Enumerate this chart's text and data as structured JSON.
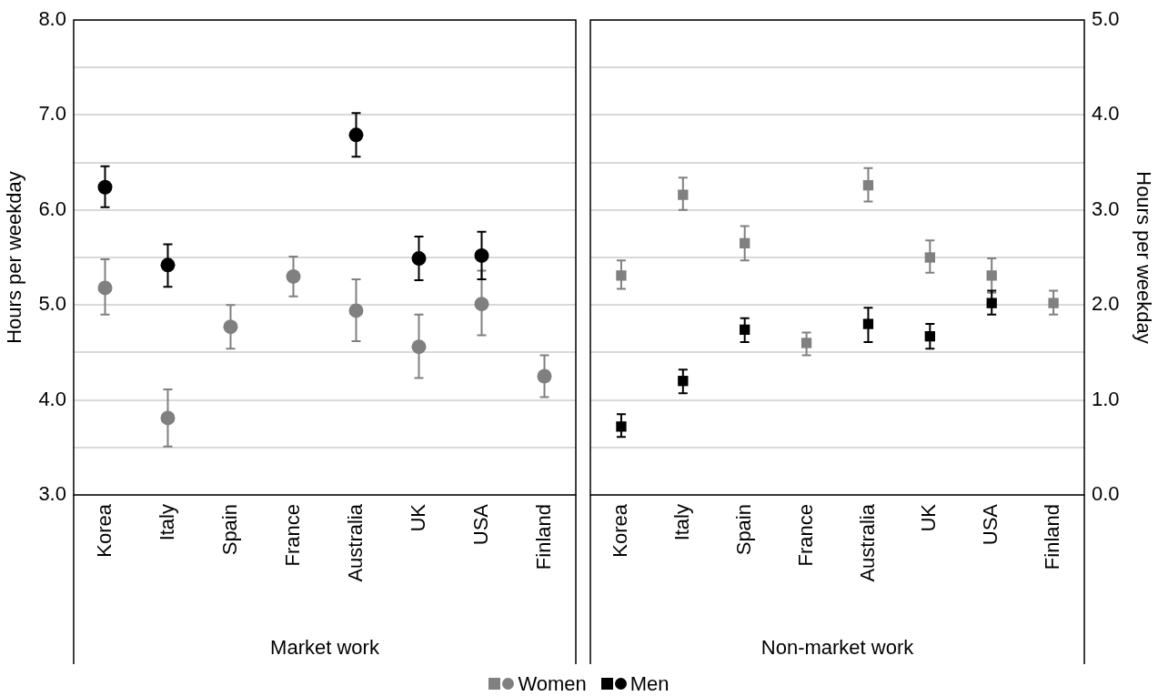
{
  "chart_data": [
    {
      "type": "scatter",
      "xlabel": "Market work",
      "ylabel": "Hours per weekday",
      "categories": [
        "Korea",
        "Italy",
        "Spain",
        "France",
        "Australia",
        "UK",
        "USA",
        "Finland"
      ],
      "series": [
        {
          "name": "Women",
          "color": "#808080",
          "values": [
            5.18,
            3.81,
            4.77,
            5.3,
            4.94,
            4.56,
            5.01,
            4.25
          ],
          "errors": [
            [
              4.9,
              5.48
            ],
            [
              3.51,
              4.11
            ],
            [
              4.54,
              5.0
            ],
            [
              5.09,
              5.51
            ],
            [
              4.62,
              5.27
            ],
            [
              4.23,
              4.9
            ],
            [
              4.68,
              5.36
            ],
            [
              4.03,
              4.47
            ]
          ]
        },
        {
          "name": "Men",
          "color": "#000000",
          "values": [
            6.24,
            5.42,
            null,
            null,
            6.79,
            5.49,
            5.52,
            null
          ],
          "errors": [
            [
              6.03,
              6.46
            ],
            [
              5.19,
              5.64
            ],
            null,
            null,
            [
              6.56,
              7.02
            ],
            [
              5.26,
              5.72
            ],
            [
              5.27,
              5.77
            ],
            null
          ]
        }
      ],
      "ylim": [
        3,
        8
      ],
      "yticks": [
        {
          "value": 3,
          "label": "3.0"
        },
        {
          "value": 3.5,
          "label": null
        },
        {
          "value": 4,
          "label": "4.0"
        },
        {
          "value": 4.5,
          "label": null
        },
        {
          "value": 5,
          "label": "5.0"
        },
        {
          "value": 5.5,
          "label": null
        },
        {
          "value": 6,
          "label": "6.0"
        },
        {
          "value": 6.5,
          "label": null
        },
        {
          "value": 7,
          "label": "7.0"
        },
        {
          "value": 7.5,
          "label": null
        },
        {
          "value": 8,
          "label": "8.0"
        }
      ],
      "grid": "y",
      "marker": "circle",
      "legend": "bottom"
    },
    {
      "type": "scatter",
      "xlabel": "Non-market work",
      "y2label": "Hours per weekday",
      "categories": [
        "Korea",
        "Italy",
        "Spain",
        "France",
        "Australia",
        "UK",
        "USA",
        "Finland"
      ],
      "series": [
        {
          "color": "#808080",
          "axis": "y2",
          "values": [
            2.31,
            3.16,
            2.65,
            1.6,
            3.26,
            2.5,
            2.31,
            2.02
          ],
          "errors": [
            [
              2.17,
              2.47
            ],
            [
              3.0,
              3.34
            ],
            [
              2.47,
              2.83
            ],
            [
              1.47,
              1.71
            ],
            [
              3.09,
              3.44
            ],
            [
              2.34,
              2.68
            ],
            [
              2.13,
              2.49
            ],
            [
              1.9,
              2.15
            ]
          ]
        },
        {
          "color": "#000000",
          "axis": "y2",
          "values": [
            0.72,
            1.2,
            1.74,
            null,
            1.8,
            1.67,
            2.02,
            null
          ],
          "errors": [
            [
              0.61,
              0.85
            ],
            [
              1.07,
              1.32
            ],
            [
              1.61,
              1.86
            ],
            null,
            [
              1.61,
              1.97
            ],
            [
              1.54,
              1.8
            ],
            [
              1.9,
              2.15
            ],
            null
          ]
        }
      ],
      "y2lim": [
        0,
        5
      ],
      "y2ticks": [
        {
          "value": 0,
          "label": "0.0"
        },
        {
          "value": 0.5,
          "label": null
        },
        {
          "value": 1,
          "label": "1.0"
        },
        {
          "value": 1.5,
          "label": null
        },
        {
          "value": 2,
          "label": "2.0"
        },
        {
          "value": 2.5,
          "label": null
        },
        {
          "value": 3,
          "label": "3.0"
        },
        {
          "value": 3.5,
          "label": null
        },
        {
          "value": 4,
          "label": "4.0"
        },
        {
          "value": 4.5,
          "label": null
        },
        {
          "value": 5,
          "label": "5.0"
        }
      ],
      "grid": "y",
      "marker": "square",
      "legend": "bottom"
    }
  ]
}
